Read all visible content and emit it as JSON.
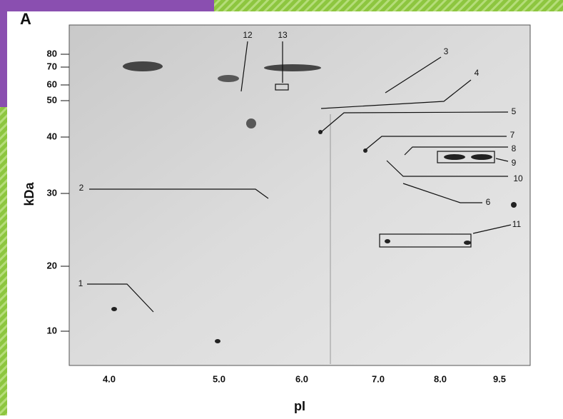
{
  "figure": {
    "panel": "A",
    "y_axis_label": "kDa",
    "x_axis_label": "pI",
    "y_ticks": [
      "80",
      "70",
      "60",
      "50",
      "40",
      "30",
      "20",
      "10"
    ],
    "x_ticks": [
      "4.0",
      "5.0",
      "6.0",
      "7.0",
      "8.0",
      "9.5"
    ],
    "spots": [
      "1",
      "2",
      "3",
      "4",
      "5",
      "6",
      "7",
      "8",
      "9",
      "10",
      "11",
      "12",
      "13"
    ]
  }
}
